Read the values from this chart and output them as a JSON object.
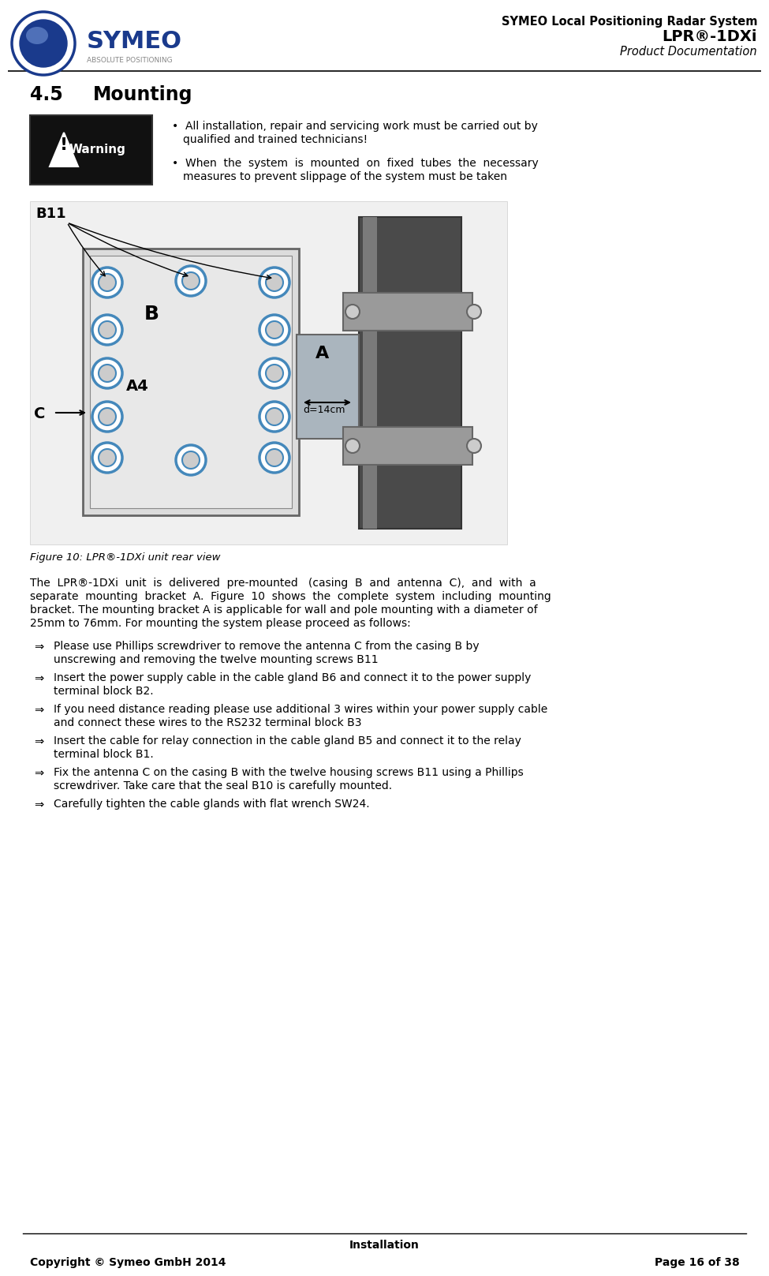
{
  "page_title_line1": "SYMEO Local Positioning Radar System",
  "page_title_line2": "LPR®-1DXi",
  "page_title_line3": "Product Documentation",
  "section_number": "4.5",
  "section_title": "Mounting",
  "warning_text": "Warning",
  "bullet1_line1": "All installation, repair and servicing work must be carried out by",
  "bullet1_line2": "qualified and trained technicians!",
  "bullet2_line1": "When  the  system  is  mounted  on  fixed  tubes  the  necessary",
  "bullet2_line2": "measures to prevent slippage of the system must be taken",
  "figure_caption": "Figure 10: LPR®-1DXi unit rear view",
  "body_text_line1": "The  LPR®-1DXi  unit  is  delivered  pre-mounted   (casing  B  and  antenna  C),  and  with  a",
  "body_text_line2": "separate  mounting  bracket  A.  Figure  10  shows  the  complete  system  including  mounting",
  "body_text_line3": "bracket. The mounting bracket A is applicable for wall and pole mounting with a diameter of",
  "body_text_line4": "25mm to 76mm. For mounting the system please proceed as follows:",
  "step1_line1": "Please use Phillips screwdriver to remove the antenna C from the casing B by",
  "step1_line2": "unscrewing and removing the twelve mounting screws B11",
  "step2_line1": "Insert the power supply cable in the cable gland B6 and connect it to the power supply",
  "step2_line2": "terminal block B2.",
  "step3_line1": "If you need distance reading please use additional 3 wires within your power supply cable",
  "step3_line2": "and connect these wires to the RS232 terminal block B3",
  "step4_line1": "Insert the cable for relay connection in the cable gland B5 and connect it to the relay",
  "step4_line2": "terminal block B1.",
  "step5_line1": "Fix the antenna C on the casing B with the twelve housing screws B11 using a Phillips",
  "step5_line2": "screwdriver. Take care that the seal B10 is carefully mounted.",
  "step6_line1": "Carefully tighten the cable glands with flat wrench SW24.",
  "footer_center": "Installation",
  "footer_left": "Copyright © Symeo GmbH 2014",
  "footer_right": "Page 16 of 38",
  "bg_color": "#ffffff",
  "text_color": "#000000",
  "symeo_blue": "#1a3a8c",
  "arrow_symbol": "⇒"
}
